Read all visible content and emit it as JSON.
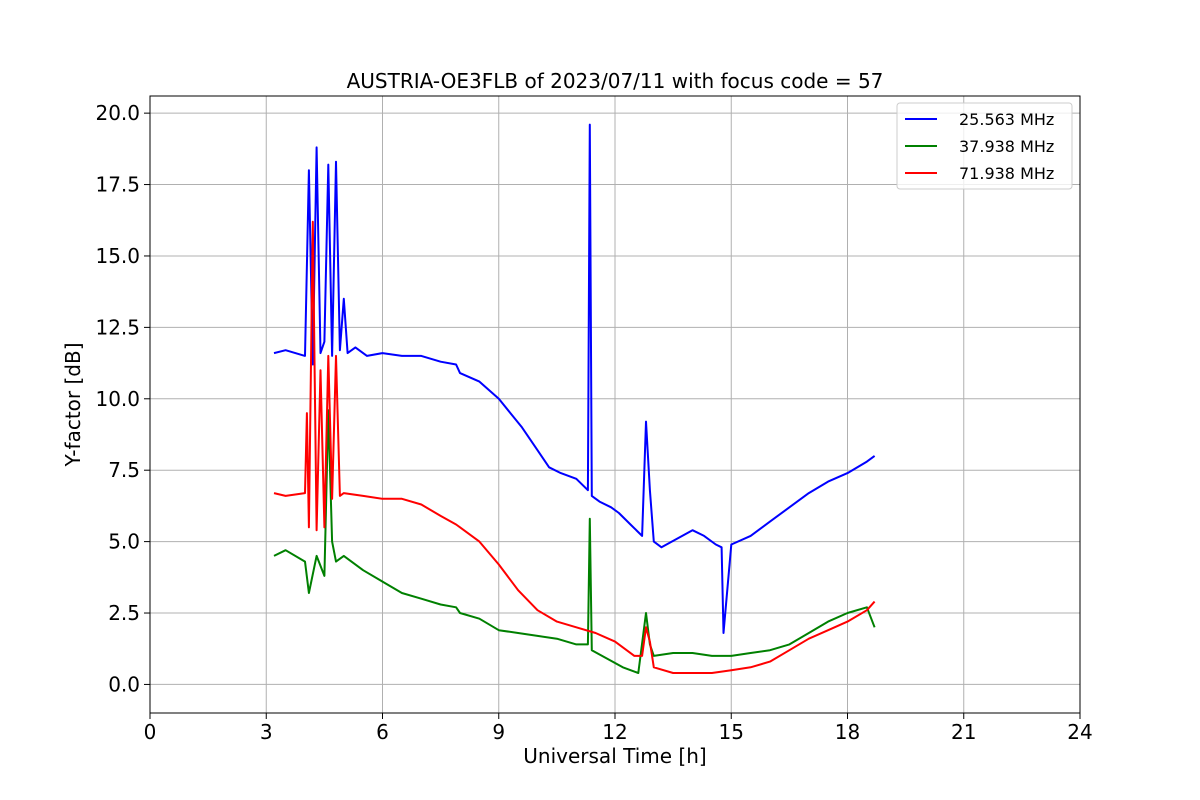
{
  "chart_data": {
    "type": "line",
    "title": "AUSTRIA-OE3FLB of 2023/07/11 with focus code = 57",
    "xlabel": "Universal Time [h]",
    "ylabel": "Y-factor [dB]",
    "xlim": [
      0,
      24
    ],
    "ylim": [
      -1.0,
      20.6
    ],
    "xticks": [
      "0",
      "3",
      "6",
      "9",
      "12",
      "15",
      "18",
      "21",
      "24"
    ],
    "yticks": [
      "0.0",
      "2.5",
      "5.0",
      "7.5",
      "10.0",
      "12.5",
      "15.0",
      "17.5",
      "20.0"
    ],
    "grid": true,
    "legend_position": "top-right",
    "series": [
      {
        "name": "25.563 MHz",
        "color": "#0000ff",
        "x": [
          3.2,
          3.5,
          4.0,
          4.1,
          4.2,
          4.3,
          4.4,
          4.5,
          4.6,
          4.7,
          4.8,
          4.9,
          5.0,
          5.1,
          5.3,
          5.6,
          6.0,
          6.5,
          7.0,
          7.5,
          7.9,
          8.0,
          8.5,
          9.0,
          9.3,
          9.6,
          10.0,
          10.3,
          10.6,
          11.0,
          11.3,
          11.35,
          11.4,
          11.6,
          11.9,
          12.1,
          12.4,
          12.7,
          12.8,
          12.9,
          13.0,
          13.2,
          13.6,
          14.0,
          14.3,
          14.6,
          14.75,
          14.8,
          15.0,
          15.5,
          16.0,
          16.5,
          17.0,
          17.5,
          18.0,
          18.5,
          18.7
        ],
        "y": [
          11.6,
          11.7,
          11.5,
          18.0,
          11.2,
          18.8,
          11.6,
          12.0,
          18.2,
          11.5,
          18.3,
          11.7,
          13.5,
          11.6,
          11.8,
          11.5,
          11.6,
          11.5,
          11.5,
          11.3,
          11.2,
          10.9,
          10.6,
          10.0,
          9.5,
          9.0,
          8.2,
          7.6,
          7.4,
          7.2,
          6.8,
          19.6,
          6.6,
          6.4,
          6.2,
          6.0,
          5.6,
          5.2,
          9.2,
          6.8,
          5.0,
          4.8,
          5.1,
          5.4,
          5.2,
          4.9,
          4.8,
          1.8,
          4.9,
          5.2,
          5.7,
          6.2,
          6.7,
          7.1,
          7.4,
          7.8,
          8.0
        ]
      },
      {
        "name": "37.938 MHz",
        "color": "#008000",
        "x": [
          3.2,
          3.5,
          4.0,
          4.1,
          4.3,
          4.5,
          4.6,
          4.7,
          4.8,
          5.0,
          5.5,
          6.0,
          6.5,
          7.0,
          7.5,
          7.9,
          8.0,
          8.5,
          9.0,
          9.5,
          10.0,
          10.5,
          11.0,
          11.3,
          11.35,
          11.4,
          11.8,
          12.2,
          12.6,
          12.8,
          12.9,
          13.0,
          13.5,
          14.0,
          14.5,
          15.0,
          15.5,
          16.0,
          16.5,
          17.0,
          17.5,
          18.0,
          18.5,
          18.7
        ],
        "y": [
          4.5,
          4.7,
          4.3,
          3.2,
          4.5,
          3.8,
          9.6,
          5.0,
          4.3,
          4.5,
          4.0,
          3.6,
          3.2,
          3.0,
          2.8,
          2.7,
          2.5,
          2.3,
          1.9,
          1.8,
          1.7,
          1.6,
          1.4,
          1.4,
          5.8,
          1.2,
          0.9,
          0.6,
          0.4,
          2.5,
          1.4,
          1.0,
          1.1,
          1.1,
          1.0,
          1.0,
          1.1,
          1.2,
          1.4,
          1.8,
          2.2,
          2.5,
          2.7,
          2.0
        ]
      },
      {
        "name": "71.938 MHz",
        "color": "#ff0000",
        "x": [
          3.2,
          3.5,
          4.0,
          4.05,
          4.1,
          4.2,
          4.3,
          4.4,
          4.5,
          4.6,
          4.7,
          4.8,
          4.9,
          5.0,
          5.5,
          6.0,
          6.5,
          7.0,
          7.5,
          7.9,
          8.0,
          8.5,
          9.0,
          9.5,
          10.0,
          10.5,
          11.0,
          11.5,
          12.0,
          12.5,
          12.7,
          12.8,
          12.9,
          13.0,
          13.5,
          14.0,
          14.5,
          15.0,
          15.5,
          16.0,
          16.5,
          17.0,
          17.5,
          18.0,
          18.5,
          18.7
        ],
        "y": [
          6.7,
          6.6,
          6.7,
          9.5,
          5.5,
          16.2,
          5.4,
          11.0,
          5.5,
          11.5,
          6.5,
          11.5,
          6.6,
          6.7,
          6.6,
          6.5,
          6.5,
          6.3,
          5.9,
          5.6,
          5.5,
          5.0,
          4.2,
          3.3,
          2.6,
          2.2,
          2.0,
          1.8,
          1.5,
          1.0,
          1.0,
          2.0,
          1.5,
          0.6,
          0.4,
          0.4,
          0.4,
          0.5,
          0.6,
          0.8,
          1.2,
          1.6,
          1.9,
          2.2,
          2.6,
          2.9
        ]
      }
    ]
  }
}
